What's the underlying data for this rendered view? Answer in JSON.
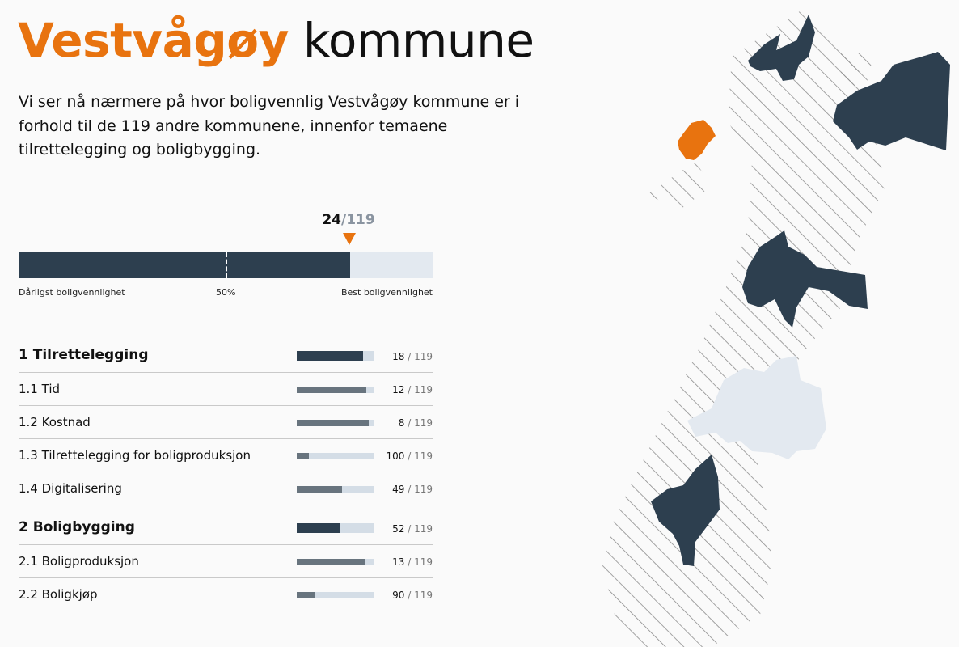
{
  "header": {
    "title_accent": "Vestvågøy",
    "title_rest": " kommune",
    "intro": "Vi ser nå nærmere på hvor boligvennlig Vestvågøy kommune er i forhold til de 119 andre kommunene, innenfor temaene tilrettelegging og boligbygging."
  },
  "overall": {
    "rank": "24",
    "total": "/119",
    "fill_fraction": 0.8,
    "left_label": "Dårligst boligvennlighet",
    "mid_label": "50%",
    "right_label": "Best boligvennlighet"
  },
  "categories": [
    {
      "label": "1 Tilrettelegging",
      "rank": "18",
      "sep": " / 119",
      "fill": 0.85,
      "main": true
    },
    {
      "label": "1.1 Tid",
      "rank": "12",
      "sep": " / 119",
      "fill": 0.9,
      "main": false
    },
    {
      "label": "1.2 Kostnad",
      "rank": "8",
      "sep": " / 119",
      "fill": 0.93,
      "main": false
    },
    {
      "label": "1.3 Tilrettelegging for boligproduksjon",
      "rank": "100",
      "sep": " / 119",
      "fill": 0.16,
      "main": false
    },
    {
      "label": "1.4 Digitalisering",
      "rank": "49",
      "sep": " / 119",
      "fill": 0.58,
      "main": false
    },
    {
      "label": "2 Boligbygging",
      "rank": "52",
      "sep": " / 119",
      "fill": 0.56,
      "main": true
    },
    {
      "label": "2.1 Boligproduksjon",
      "rank": "13",
      "sep": " / 119",
      "fill": 0.89,
      "main": false
    },
    {
      "label": "2.2 Boligkjøp",
      "rank": "90",
      "sep": " / 119",
      "fill": 0.24,
      "main": false
    }
  ],
  "colors": {
    "accent": "#e8730f",
    "dark": "#2d3f4f",
    "sub_fill": "#68747e",
    "track": "#d4dde6",
    "light_region": "#e3e9f0"
  }
}
